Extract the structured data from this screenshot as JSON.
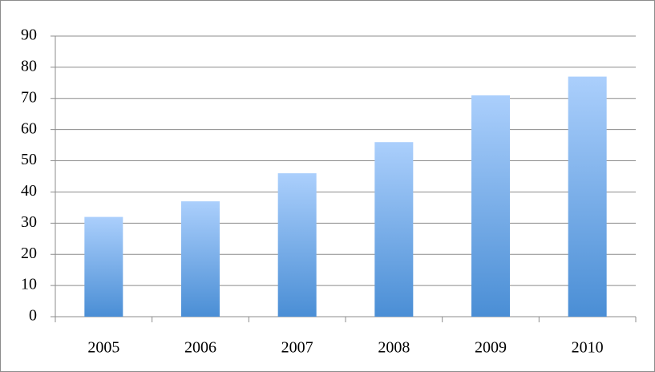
{
  "chart_data": {
    "type": "bar",
    "categories": [
      "2005",
      "2006",
      "2007",
      "2008",
      "2009",
      "2010"
    ],
    "values": [
      32,
      37,
      46,
      56,
      71,
      77
    ],
    "gradient": [
      "#abcffc",
      "#4a8ed5"
    ],
    "ylim": [
      0,
      90
    ],
    "yticks": [
      0,
      10,
      20,
      30,
      40,
      50,
      60,
      70,
      80,
      90
    ],
    "grid": true
  }
}
